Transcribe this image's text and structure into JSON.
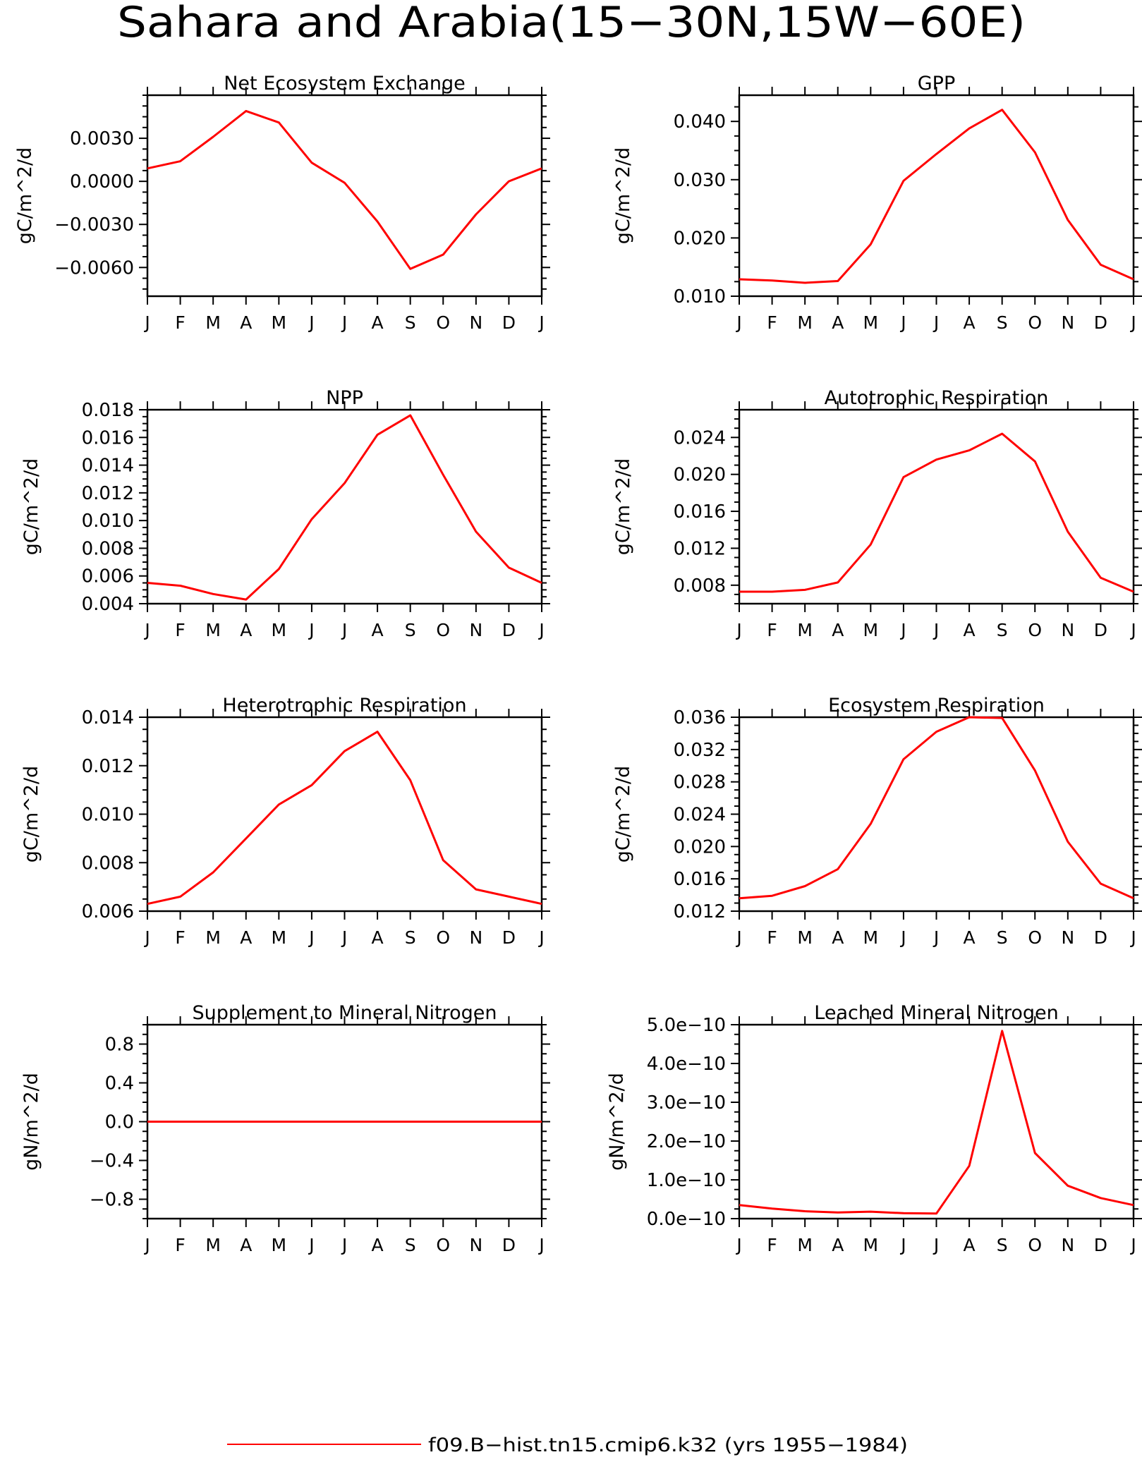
{
  "figure": {
    "title": "Sahara and Arabia(15−30N,15W−60E)",
    "legend": {
      "label": "f09.B−hist.tn15.cmip6.k32 (yrs 1955−1984)",
      "color": "#ff0000",
      "position": "bottom-center"
    }
  },
  "chart_data": [
    {
      "type": "line",
      "title": "Net Ecosystem Exchange",
      "ylabel": "gC/m^2/d",
      "categories": [
        "J",
        "F",
        "M",
        "A",
        "M",
        "J",
        "J",
        "A",
        "S",
        "O",
        "N",
        "D",
        "J"
      ],
      "ylim": [
        -0.008,
        0.006
      ],
      "yticks": [
        -0.006,
        -0.003,
        0.0,
        0.003
      ],
      "ytick_labels": [
        "−0.0060",
        "−0.0030",
        "0.0000",
        "0.0030"
      ],
      "series": [
        {
          "values": [
            0.0009,
            0.0014,
            0.0031,
            0.0049,
            0.0041,
            0.0013,
            -0.0001,
            -0.0028,
            -0.0061,
            -0.0051,
            -0.0023,
            0.0,
            0.0009
          ],
          "color": "#ff0000"
        }
      ]
    },
    {
      "type": "line",
      "title": "GPP",
      "ylabel": "gC/m^2/d",
      "categories": [
        "J",
        "F",
        "M",
        "A",
        "M",
        "J",
        "J",
        "A",
        "S",
        "O",
        "N",
        "D",
        "J"
      ],
      "ylim": [
        0.01,
        0.0445
      ],
      "yticks": [
        0.01,
        0.02,
        0.03,
        0.04
      ],
      "ytick_labels": [
        "0.010",
        "0.020",
        "0.030",
        "0.040"
      ],
      "series": [
        {
          "values": [
            0.0129,
            0.0127,
            0.0123,
            0.0126,
            0.0189,
            0.0298,
            0.0344,
            0.0388,
            0.042,
            0.0347,
            0.0231,
            0.0154,
            0.0129
          ],
          "color": "#ff0000"
        }
      ]
    },
    {
      "type": "line",
      "title": "NPP",
      "ylabel": "gC/m^2/d",
      "categories": [
        "J",
        "F",
        "M",
        "A",
        "M",
        "J",
        "J",
        "A",
        "S",
        "O",
        "N",
        "D",
        "J"
      ],
      "ylim": [
        0.004,
        0.018
      ],
      "yticks": [
        0.004,
        0.006,
        0.008,
        0.01,
        0.012,
        0.014,
        0.016,
        0.018
      ],
      "ytick_labels": [
        "0.004",
        "0.006",
        "0.008",
        "0.010",
        "0.012",
        "0.014",
        "0.016",
        "0.018"
      ],
      "series": [
        {
          "values": [
            0.0055,
            0.0053,
            0.0047,
            0.0043,
            0.0065,
            0.0101,
            0.0127,
            0.0162,
            0.0176,
            0.0133,
            0.0092,
            0.0066,
            0.0055
          ],
          "color": "#ff0000"
        }
      ]
    },
    {
      "type": "line",
      "title": "Autotrophic Respiration",
      "ylabel": "gC/m^2/d",
      "categories": [
        "J",
        "F",
        "M",
        "A",
        "M",
        "J",
        "J",
        "A",
        "S",
        "O",
        "N",
        "D",
        "J"
      ],
      "ylim": [
        0.006,
        0.027
      ],
      "yticks": [
        0.008,
        0.012,
        0.016,
        0.02,
        0.024
      ],
      "ytick_labels": [
        "0.008",
        "0.012",
        "0.016",
        "0.020",
        "0.024"
      ],
      "series": [
        {
          "values": [
            0.0073,
            0.0073,
            0.0075,
            0.0083,
            0.0124,
            0.0197,
            0.0216,
            0.0226,
            0.0244,
            0.0214,
            0.0138,
            0.0088,
            0.0073
          ],
          "color": "#ff0000"
        }
      ]
    },
    {
      "type": "line",
      "title": "Heterotrophic Respiration",
      "ylabel": "gC/m^2/d",
      "categories": [
        "J",
        "F",
        "M",
        "A",
        "M",
        "J",
        "J",
        "A",
        "S",
        "O",
        "N",
        "D",
        "J"
      ],
      "ylim": [
        0.006,
        0.014
      ],
      "yticks": [
        0.006,
        0.008,
        0.01,
        0.012,
        0.014
      ],
      "ytick_labels": [
        "0.006",
        "0.008",
        "0.010",
        "0.012",
        "0.014"
      ],
      "series": [
        {
          "values": [
            0.0063,
            0.0066,
            0.0076,
            0.009,
            0.0104,
            0.0112,
            0.0126,
            0.0134,
            0.0114,
            0.0081,
            0.0069,
            0.0066,
            0.0063
          ],
          "color": "#ff0000"
        }
      ]
    },
    {
      "type": "line",
      "title": "Ecosystem Respiration",
      "ylabel": "gC/m^2/d",
      "categories": [
        "J",
        "F",
        "M",
        "A",
        "M",
        "J",
        "J",
        "A",
        "S",
        "O",
        "N",
        "D",
        "J"
      ],
      "ylim": [
        0.012,
        0.036
      ],
      "yticks": [
        0.012,
        0.016,
        0.02,
        0.024,
        0.028,
        0.032,
        0.036
      ],
      "ytick_labels": [
        "0.012",
        "0.016",
        "0.020",
        "0.024",
        "0.028",
        "0.032",
        "0.036"
      ],
      "series": [
        {
          "values": [
            0.0136,
            0.0139,
            0.0151,
            0.0172,
            0.0228,
            0.0308,
            0.0342,
            0.036,
            0.0359,
            0.0294,
            0.0206,
            0.0154,
            0.0136
          ],
          "color": "#ff0000"
        }
      ]
    },
    {
      "type": "line",
      "title": "Supplement to Mineral Nitrogen",
      "ylabel": "gN/m^2/d",
      "categories": [
        "J",
        "F",
        "M",
        "A",
        "M",
        "J",
        "J",
        "A",
        "S",
        "O",
        "N",
        "D",
        "J"
      ],
      "ylim": [
        -1.0,
        1.0
      ],
      "yticks": [
        -0.8,
        -0.4,
        0.0,
        0.4,
        0.8
      ],
      "ytick_labels": [
        "−0.8",
        "−0.4",
        "0.0",
        "0.4",
        "0.8"
      ],
      "series": [
        {
          "values": [
            0,
            0,
            0,
            0,
            0,
            0,
            0,
            0,
            0,
            0,
            0,
            0,
            0
          ],
          "color": "#ff0000"
        }
      ]
    },
    {
      "type": "line",
      "title": "Leached Mineral Nitrogen",
      "ylabel": "gN/m^2/d",
      "categories": [
        "J",
        "F",
        "M",
        "A",
        "M",
        "J",
        "J",
        "A",
        "S",
        "O",
        "N",
        "D",
        "J"
      ],
      "ylim": [
        0.0,
        5e-10
      ],
      "yticks": [
        0.0,
        1e-10,
        2e-10,
        3e-10,
        4e-10,
        5e-10
      ],
      "ytick_labels": [
        "0.0e−10",
        "1.0e−10",
        "2.0e−10",
        "3.0e−10",
        "4.0e−10",
        "5.0e−10"
      ],
      "series": [
        {
          "values": [
            3.5e-11,
            2.6e-11,
            1.9e-11,
            1.6e-11,
            1.8e-11,
            1.4e-11,
            1.3e-11,
            1.36e-10,
            4.84e-10,
            1.69e-10,
            8.5e-11,
            5.3e-11,
            3.5e-11
          ],
          "color": "#ff0000"
        }
      ]
    }
  ]
}
